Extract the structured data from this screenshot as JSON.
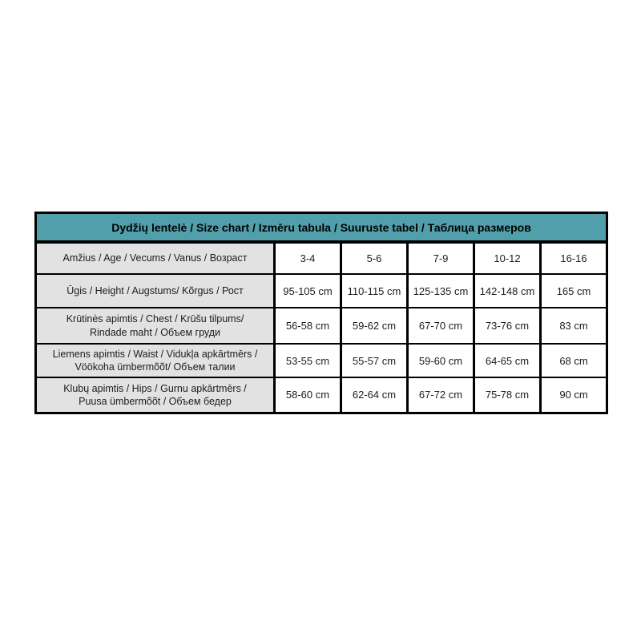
{
  "page": {
    "background_color": "#ffffff"
  },
  "chart_data": {
    "type": "table",
    "title": "Dydžių lentelė / Size chart / Izmēru tabula / Suuruste tabel / Таблица размеров",
    "rows": [
      {
        "label": "Amžius / Age / Vecums / Vanus / Возраст",
        "values": [
          "3-4",
          "5-6",
          "7-9",
          "10-12",
          "16-16"
        ]
      },
      {
        "label": "Ūgis / Height / Augstums/ Kõrgus / Рост",
        "values": [
          "95-105 cm",
          "110-115 cm",
          "125-135 cm",
          "142-148 cm",
          "165 cm"
        ]
      },
      {
        "label": "Krūtinės apimtis / Chest / Krūšu tilpums/ Rindade maht / Объем груди",
        "values": [
          "56-58 cm",
          "59-62 cm",
          "67-70 cm",
          "73-76 cm",
          "83 cm"
        ]
      },
      {
        "label": "Liemens apimtis / Waist / Vidukļa apkārtmērs / Vöökoha ümbermõõt/ Объем талии",
        "values": [
          "53-55 cm",
          "55-57 cm",
          "59-60 cm",
          "64-65 cm",
          "68 cm"
        ]
      },
      {
        "label": "Klubų apimtis / Hips / Gurnu apkārtmērs / Puusa ümbermõõt / Объем бедер",
        "values": [
          "58-60 cm",
          "62-64 cm",
          "67-72 cm",
          "75-78 cm",
          "90 cm"
        ]
      }
    ],
    "layout": {
      "legend_position": "none",
      "grid": "on",
      "header_bg_color": "#529fac",
      "label_column_bg_color": "#e2e2e2",
      "border_color": "#000000",
      "text_color": "#1c1c1c"
    }
  }
}
